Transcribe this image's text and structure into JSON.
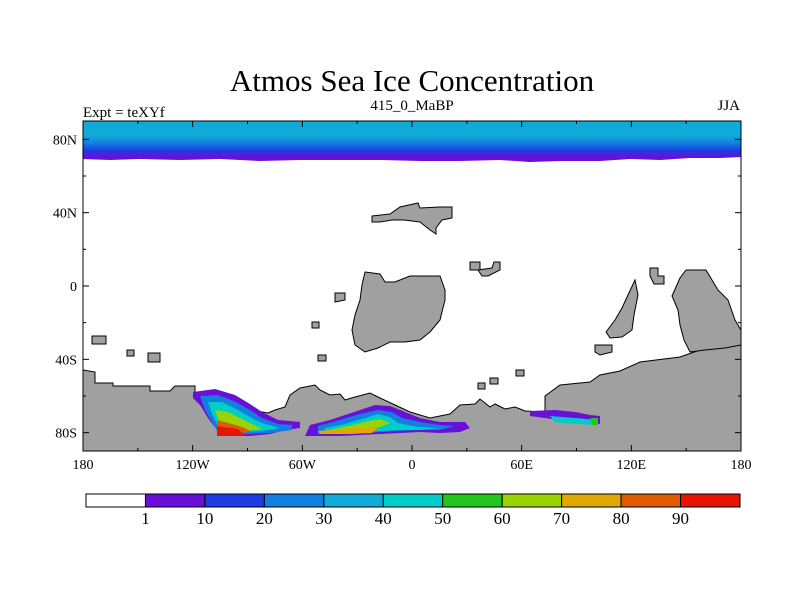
{
  "title": "Atmos Sea Ice Concentration",
  "left_label": "Expt = teXYf",
  "center_label": "415_0_MaBP",
  "right_label": "JJA",
  "lat_ticks": [
    {
      "value": 80,
      "label": "80N"
    },
    {
      "value": 40,
      "label": "40N"
    },
    {
      "value": 0,
      "label": "0"
    },
    {
      "value": -40,
      "label": "40S"
    },
    {
      "value": -80,
      "label": "80S"
    }
  ],
  "lon_ticks": [
    {
      "value": -180,
      "label": "180"
    },
    {
      "value": -120,
      "label": "120W"
    },
    {
      "value": -60,
      "label": "60W"
    },
    {
      "value": 0,
      "label": "0"
    },
    {
      "value": 60,
      "label": "60E"
    },
    {
      "value": 120,
      "label": "120E"
    },
    {
      "value": 180,
      "label": "180"
    }
  ],
  "colorbar": {
    "colors": [
      "#ffffff",
      "#6a0fd8",
      "#1e3ce6",
      "#127ee0",
      "#10aad8",
      "#00cdc8",
      "#22c71e",
      "#9ad400",
      "#e0a800",
      "#e05a00",
      "#e61400"
    ],
    "labels": [
      "1",
      "10",
      "20",
      "30",
      "40",
      "50",
      "60",
      "70",
      "80",
      "90"
    ]
  },
  "colors": {
    "land": "#a0a0a0",
    "ocean": "#ffffff"
  }
}
